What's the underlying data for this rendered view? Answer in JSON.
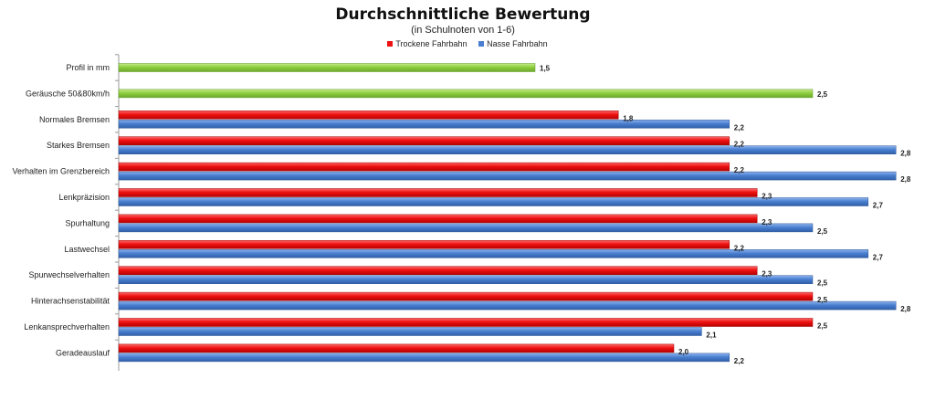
{
  "chart_data": {
    "type": "bar",
    "orientation": "horizontal",
    "title": "Durchschnittliche Bewertung",
    "subtitle": "(in Schulnoten von 1-6)",
    "xlim": [
      0,
      3
    ],
    "grid": false,
    "legend_position": "top-center",
    "categories": [
      "Profil in mm",
      "Geräusche 50&80km/h",
      "Normales Bremsen",
      "Starkes Bremsen",
      "Verhalten im Grenzbereich",
      "Lenkpräzision",
      "Spurhaltung",
      "Lastwechsel",
      "Spurwechselverhalten",
      "Hinterachsenstabilität",
      "Lenkansprechverhalten",
      "Geradeauslauf"
    ],
    "series": [
      {
        "name": "Trockene Fahrbahn",
        "color": "#ee1111",
        "values": [
          null,
          null,
          1.8,
          2.2,
          2.2,
          2.3,
          2.3,
          2.2,
          2.3,
          2.5,
          2.5,
          2.0
        ],
        "labels": [
          "",
          "",
          "1,8",
          "2,2",
          "2,2",
          "2,3",
          "2,3",
          "2,2",
          "2,3",
          "2,5",
          "2,5",
          "2,0"
        ]
      },
      {
        "name": "Nasse Fahrbahn",
        "color": "#4a7fd0",
        "values": [
          null,
          null,
          2.2,
          2.8,
          2.8,
          2.7,
          2.5,
          2.7,
          2.5,
          2.8,
          2.1,
          2.2
        ],
        "labels": [
          "",
          "",
          "2,2",
          "2,8",
          "2,8",
          "2,7",
          "2,5",
          "2,7",
          "2,5",
          "2,8",
          "2,1",
          "2,2"
        ]
      }
    ],
    "single_bars": [
      {
        "category": "Profil in mm",
        "value": 1.5,
        "label": "1,5",
        "color": "#8fce3f"
      },
      {
        "category": "Geräusche 50&80km/h",
        "value": 2.5,
        "label": "2,5",
        "color": "#8fce3f"
      }
    ]
  }
}
